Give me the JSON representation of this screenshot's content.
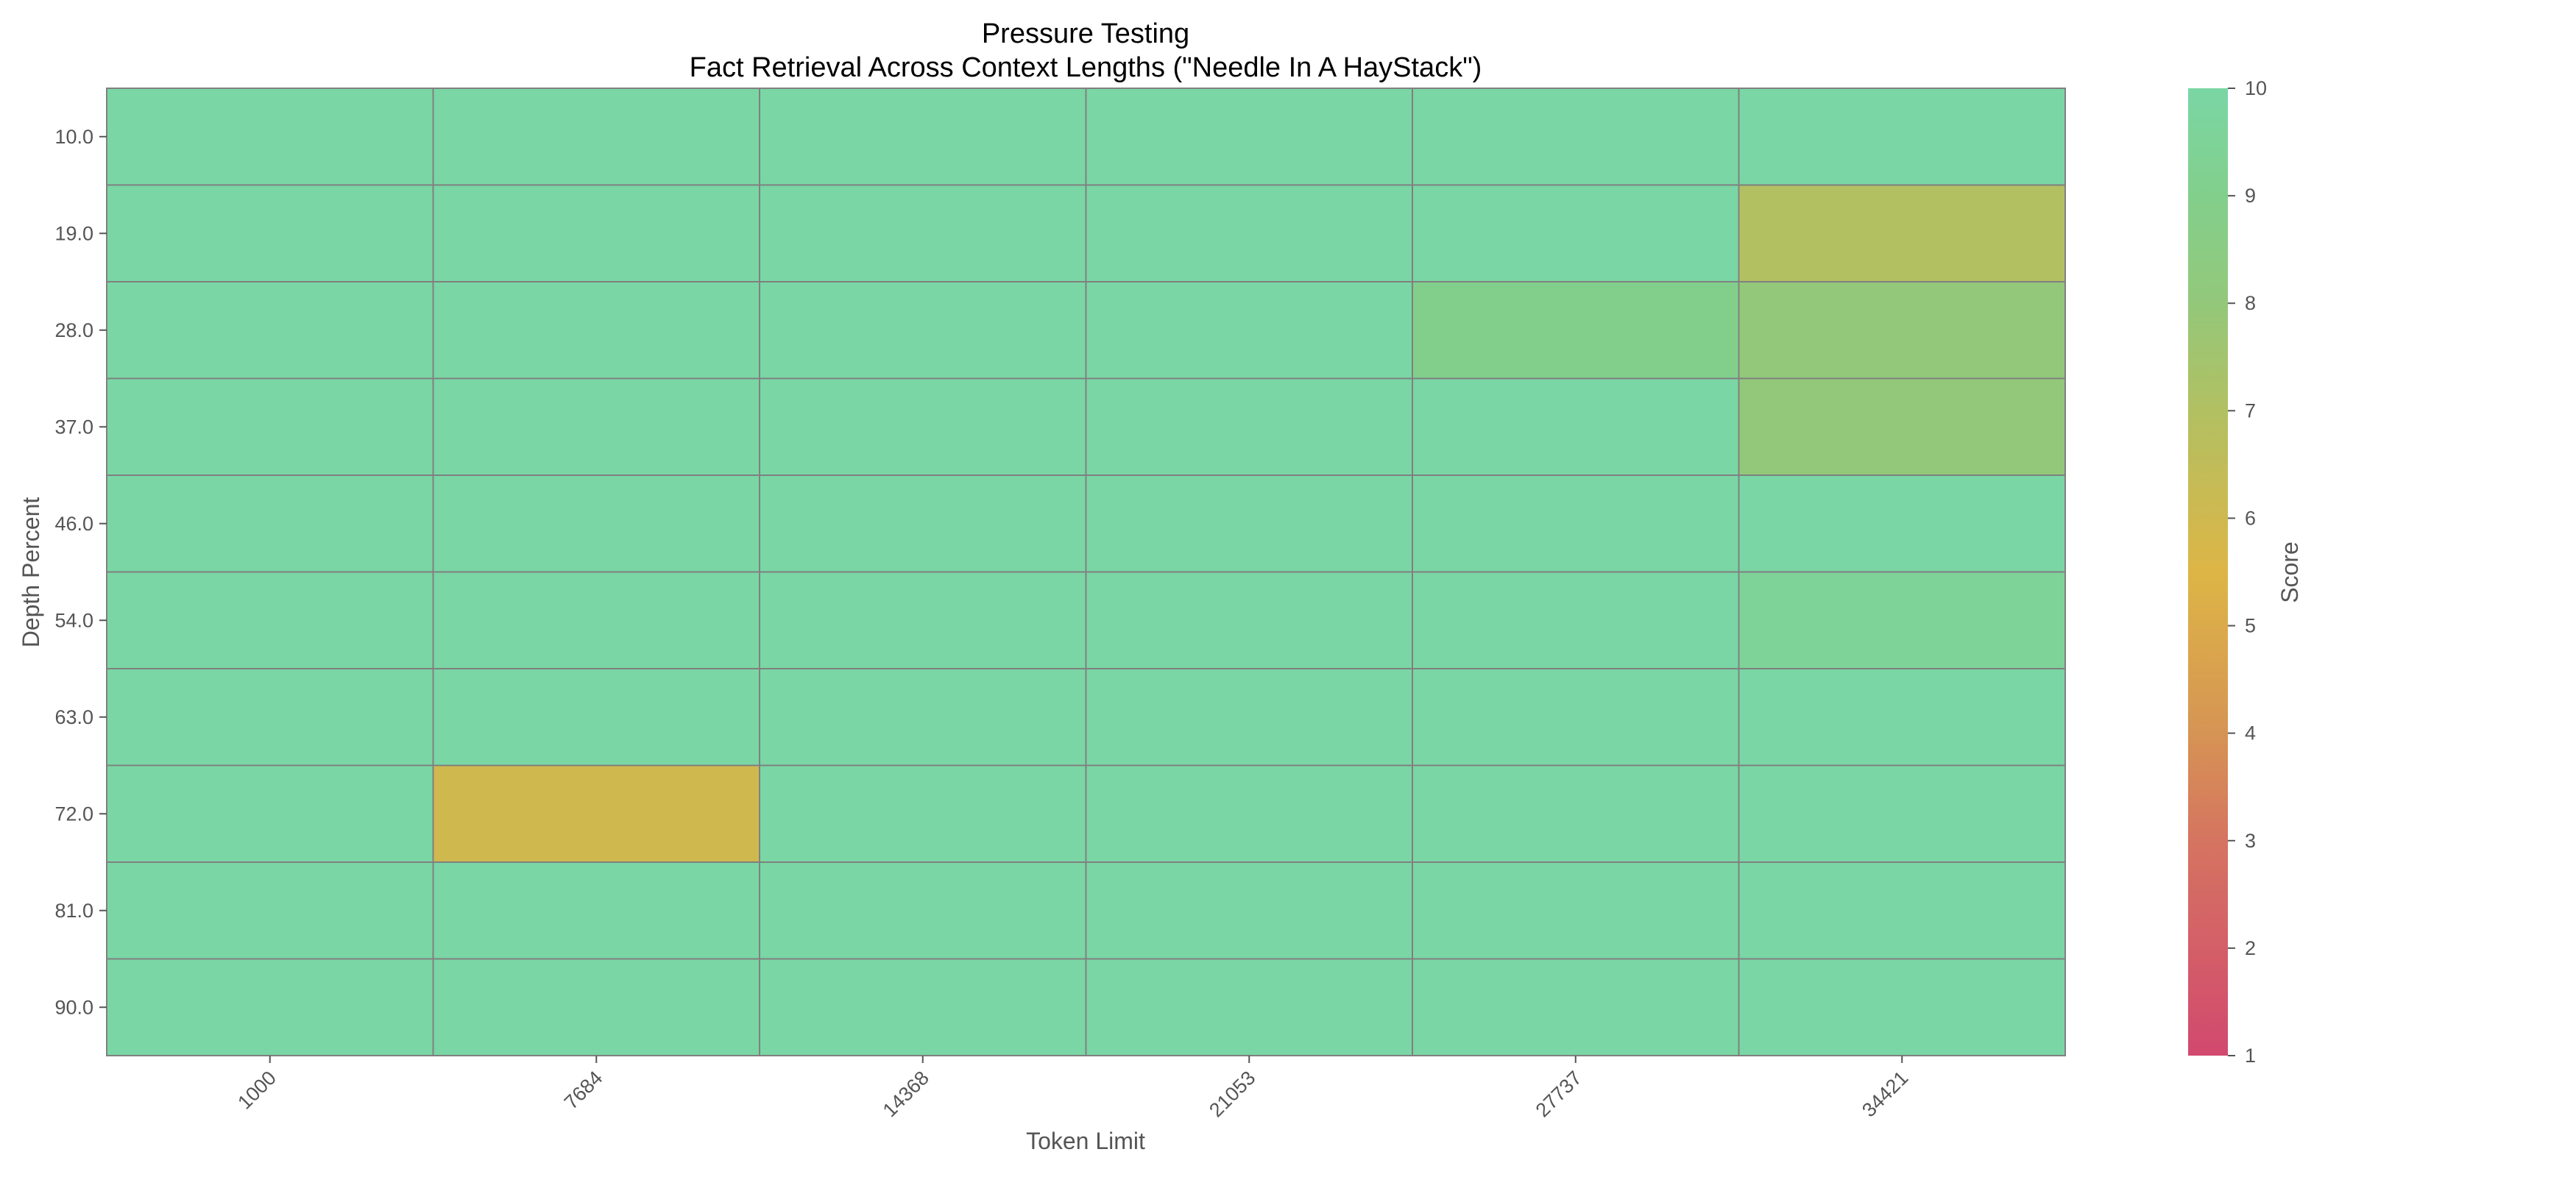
{
  "chart_data": {
    "type": "heatmap",
    "title": "Pressure Testing",
    "subtitle": "Fact Retrieval Across Context Lengths (\"Needle In A HayStack\")",
    "xlabel": "Token Limit",
    "ylabel": "Depth Percent",
    "x": [
      "1000",
      "7684",
      "14368",
      "21053",
      "27737",
      "34421"
    ],
    "y": [
      "10.0",
      "19.0",
      "28.0",
      "37.0",
      "46.0",
      "54.0",
      "63.0",
      "72.0",
      "81.0",
      "90.0"
    ],
    "values": [
      [
        10,
        10,
        10,
        10,
        10,
        10
      ],
      [
        10,
        10,
        10,
        10,
        10,
        7
      ],
      [
        10,
        10,
        10,
        10,
        9,
        8
      ],
      [
        10,
        10,
        10,
        10,
        10,
        8
      ],
      [
        10,
        10,
        10,
        10,
        10,
        10
      ],
      [
        10,
        10,
        10,
        10,
        10,
        9.5
      ],
      [
        10,
        10,
        10,
        10,
        10,
        10
      ],
      [
        10,
        6,
        10,
        10,
        10,
        10
      ],
      [
        10,
        10,
        10,
        10,
        10,
        10
      ],
      [
        10,
        10,
        10,
        10,
        10,
        10
      ]
    ],
    "colorbar": {
      "label": "Score",
      "range": [
        1,
        10
      ],
      "ticks": [
        "1",
        "2",
        "3",
        "4",
        "5",
        "6",
        "7",
        "8",
        "9",
        "10"
      ],
      "colors": [
        "#D2496F",
        "#DDB546",
        "#7AD6A4"
      ]
    },
    "grid": true,
    "cell_border_color": "#808080"
  }
}
